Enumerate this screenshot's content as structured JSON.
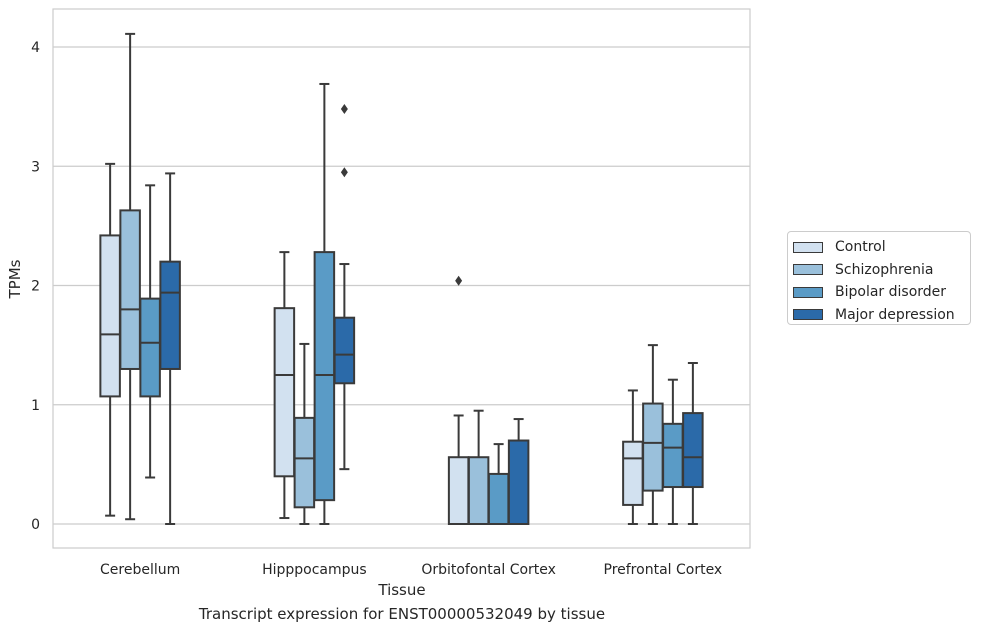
{
  "chart_data": {
    "type": "box",
    "title": "Transcript expression for ENST00000532049 by tissue",
    "xlabel": "Tissue",
    "ylabel": "TPMs",
    "ylim": [
      -0.2,
      4.32
    ],
    "yticks": [
      0,
      1,
      2,
      3,
      4
    ],
    "grid": "horizontal",
    "legend_position": "right",
    "categories": [
      "Cerebellum",
      "Hipppocampus",
      "Orbitofontal Cortex",
      "Prefrontal Cortex"
    ],
    "series": [
      {
        "name": "Control",
        "color": "#d2e1f0",
        "boxes": [
          {
            "whislo": 0.07,
            "q1": 1.07,
            "med": 1.59,
            "q3": 2.42,
            "whishi": 3.02,
            "fliers": []
          },
          {
            "whislo": 0.05,
            "q1": 0.4,
            "med": 1.25,
            "q3": 1.81,
            "whishi": 2.28,
            "fliers": []
          },
          {
            "whislo": 0.0,
            "q1": 0.0,
            "med": 0.0,
            "q3": 0.56,
            "whishi": 0.91,
            "fliers": [
              2.04
            ]
          },
          {
            "whislo": 0.0,
            "q1": 0.16,
            "med": 0.55,
            "q3": 0.69,
            "whishi": 1.12,
            "fliers": []
          }
        ]
      },
      {
        "name": "Schizophrenia",
        "color": "#9ac0db",
        "boxes": [
          {
            "whislo": 0.04,
            "q1": 1.3,
            "med": 1.8,
            "q3": 2.63,
            "whishi": 4.11,
            "fliers": []
          },
          {
            "whislo": 0.0,
            "q1": 0.14,
            "med": 0.55,
            "q3": 0.89,
            "whishi": 1.51,
            "fliers": []
          },
          {
            "whislo": 0.0,
            "q1": 0.0,
            "med": 0.0,
            "q3": 0.56,
            "whishi": 0.95,
            "fliers": []
          },
          {
            "whislo": 0.0,
            "q1": 0.28,
            "med": 0.68,
            "q3": 1.01,
            "whishi": 1.5,
            "fliers": []
          }
        ]
      },
      {
        "name": "Bipolar disorder",
        "color": "#5a9bc6",
        "boxes": [
          {
            "whislo": 0.39,
            "q1": 1.07,
            "med": 1.52,
            "q3": 1.89,
            "whishi": 2.84,
            "fliers": []
          },
          {
            "whislo": 0.0,
            "q1": 0.2,
            "med": 1.25,
            "q3": 2.28,
            "whishi": 3.69,
            "fliers": []
          },
          {
            "whislo": 0.0,
            "q1": 0.0,
            "med": 0.0,
            "q3": 0.42,
            "whishi": 0.67,
            "fliers": []
          },
          {
            "whislo": 0.0,
            "q1": 0.31,
            "med": 0.64,
            "q3": 0.84,
            "whishi": 1.21,
            "fliers": []
          }
        ]
      },
      {
        "name": "Major depression",
        "color": "#2b6aa9",
        "boxes": [
          {
            "whislo": 0.0,
            "q1": 1.3,
            "med": 1.94,
            "q3": 2.2,
            "whishi": 2.94,
            "fliers": []
          },
          {
            "whislo": 0.46,
            "q1": 1.18,
            "med": 1.42,
            "q3": 1.73,
            "whishi": 2.18,
            "fliers": [
              2.95,
              3.48
            ]
          },
          {
            "whislo": 0.0,
            "q1": 0.0,
            "med": 0.0,
            "q3": 0.7,
            "whishi": 0.88,
            "fliers": []
          },
          {
            "whislo": 0.0,
            "q1": 0.31,
            "med": 0.56,
            "q3": 0.93,
            "whishi": 1.35,
            "fliers": []
          }
        ]
      }
    ]
  }
}
